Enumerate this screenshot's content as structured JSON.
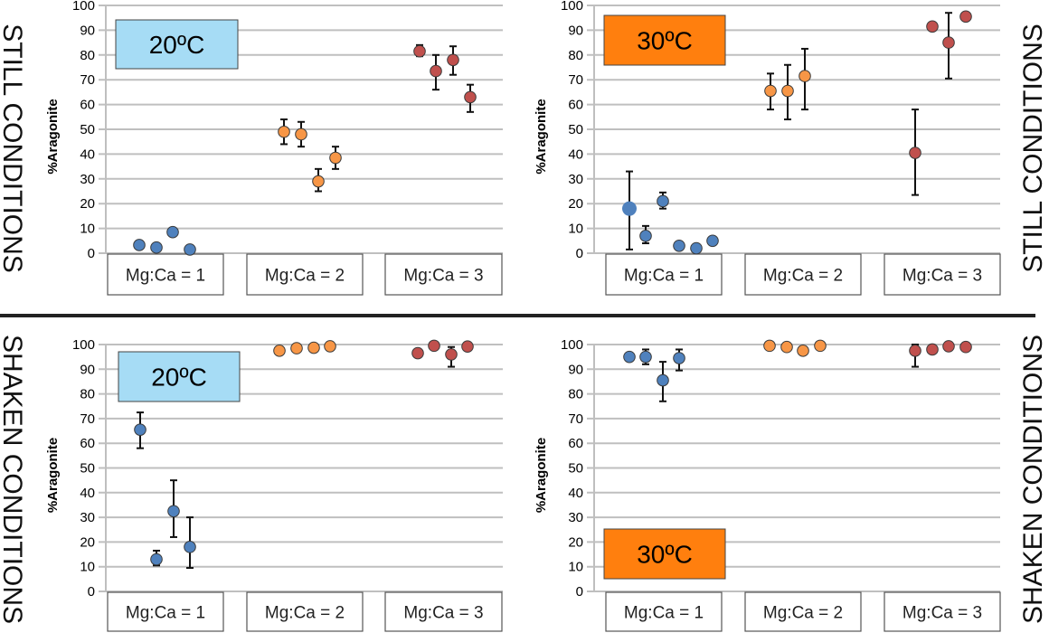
{
  "row_labels": {
    "still": "STILL CONDITIONS",
    "shaken": "SHAKEN CONDITIONS"
  },
  "colors": {
    "mg1": "#4F81BD",
    "mg2": "#F79646",
    "mg3": "#C0504D",
    "temp20": "#A6DCF5",
    "temp30": "#FF7F0E",
    "grid": "#BFBFBF"
  },
  "chart_data": [
    {
      "type": "scatter",
      "panel": "still-20C",
      "title": "20ºC",
      "condition": "STILL CONDITIONS",
      "ylabel": "%Aragonite",
      "ylim": [
        0,
        100
      ],
      "yticks": [
        0,
        10,
        20,
        30,
        40,
        50,
        60,
        70,
        80,
        90,
        100
      ],
      "grid": true,
      "categories": [
        "Mg:Ca = 1",
        "Mg:Ca = 2",
        "Mg:Ca = 3"
      ],
      "series": [
        {
          "name": "Mg:Ca = 1",
          "color_key": "mg1",
          "points": [
            {
              "y": 3.3,
              "lo": 2,
              "hi": 4.5
            },
            {
              "y": 2.3
            },
            {
              "y": 8.5,
              "lo": 7.5,
              "hi": 9.5
            },
            {
              "y": 1.5
            }
          ]
        },
        {
          "name": "Mg:Ca = 2",
          "color_key": "mg2",
          "points": [
            {
              "y": 49,
              "lo": 44,
              "hi": 54
            },
            {
              "y": 48,
              "lo": 43,
              "hi": 53
            },
            {
              "y": 29,
              "lo": 25,
              "hi": 34
            },
            {
              "y": 38.5,
              "lo": 34,
              "hi": 43
            }
          ]
        },
        {
          "name": "Mg:Ca = 3",
          "color_key": "mg3",
          "points": [
            {
              "y": 81.5,
              "lo": 79.5,
              "hi": 84
            },
            {
              "y": 73.5,
              "lo": 66,
              "hi": 80
            },
            {
              "y": 78,
              "lo": 72,
              "hi": 83.5
            },
            {
              "y": 63,
              "lo": 57,
              "hi": 68
            }
          ]
        }
      ]
    },
    {
      "type": "scatter",
      "panel": "still-30C",
      "title": "30ºC",
      "condition": "STILL CONDITIONS",
      "ylabel": "%Aragonite",
      "ylim": [
        0,
        100
      ],
      "yticks": [
        0,
        10,
        20,
        30,
        40,
        50,
        60,
        70,
        80,
        90,
        100
      ],
      "grid": true,
      "categories": [
        "Mg:Ca = 1",
        "Mg:Ca = 2",
        "Mg:Ca = 3"
      ],
      "series": [
        {
          "name": "Mg:Ca = 1",
          "color_key": "mg1",
          "points": [
            {
              "y": 18,
              "lo": 1.5,
              "hi": 33,
              "large": true
            },
            {
              "y": 7,
              "lo": 4,
              "hi": 11
            },
            {
              "y": 21,
              "lo": 18,
              "hi": 24.5
            },
            {
              "y": 3
            },
            {
              "y": 2
            },
            {
              "y": 5
            }
          ]
        },
        {
          "name": "Mg:Ca = 2",
          "color_key": "mg2",
          "points": [
            {
              "y": 65.5,
              "lo": 58,
              "hi": 72.5
            },
            {
              "y": 65.5,
              "lo": 54,
              "hi": 76
            },
            {
              "y": 71.5,
              "lo": 58,
              "hi": 82.5
            }
          ]
        },
        {
          "name": "Mg:Ca = 3",
          "color_key": "mg3",
          "points": [
            {
              "y": 40.5,
              "lo": 23.5,
              "hi": 58
            },
            {
              "y": 91.5
            },
            {
              "y": 85,
              "lo": 70.5,
              "hi": 97
            },
            {
              "y": 95.5
            }
          ]
        }
      ]
    },
    {
      "type": "scatter",
      "panel": "shaken-20C",
      "title": "20ºC",
      "condition": "SHAKEN CONDITIONS",
      "ylabel": "%Aragonite",
      "ylim": [
        0,
        100
      ],
      "yticks": [
        0,
        10,
        20,
        30,
        40,
        50,
        60,
        70,
        80,
        90,
        100
      ],
      "grid": true,
      "categories": [
        "Mg:Ca = 1",
        "Mg:Ca = 2",
        "Mg:Ca = 3"
      ],
      "series": [
        {
          "name": "Mg:Ca = 1",
          "color_key": "mg1",
          "points": [
            {
              "y": 65.5,
              "lo": 58,
              "hi": 72.5
            },
            {
              "y": 13,
              "lo": 10.5,
              "hi": 16.5
            },
            {
              "y": 32.5,
              "lo": 22,
              "hi": 45
            },
            {
              "y": 18,
              "lo": 9.5,
              "hi": 30
            }
          ]
        },
        {
          "name": "Mg:Ca = 2",
          "color_key": "mg2",
          "points": [
            {
              "y": 97.5
            },
            {
              "y": 98.5
            },
            {
              "y": 98.7
            },
            {
              "y": 99.3
            }
          ]
        },
        {
          "name": "Mg:Ca = 3",
          "color_key": "mg3",
          "points": [
            {
              "y": 96.5
            },
            {
              "y": 99.5
            },
            {
              "y": 96,
              "lo": 91,
              "hi": 99
            },
            {
              "y": 99.2
            }
          ]
        }
      ]
    },
    {
      "type": "scatter",
      "panel": "shaken-30C",
      "title": "30ºC",
      "condition": "SHAKEN CONDITIONS",
      "ylabel": "%Aragonite",
      "ylim": [
        0,
        100
      ],
      "yticks": [
        0,
        10,
        20,
        30,
        40,
        50,
        60,
        70,
        80,
        90,
        100
      ],
      "grid": true,
      "categories": [
        "Mg:Ca = 1",
        "Mg:Ca = 2",
        "Mg:Ca = 3"
      ],
      "series": [
        {
          "name": "Mg:Ca = 1",
          "color_key": "mg1",
          "points": [
            {
              "y": 95
            },
            {
              "y": 95,
              "lo": 92,
              "hi": 98
            },
            {
              "y": 85.5,
              "lo": 77,
              "hi": 93
            },
            {
              "y": 94.5,
              "lo": 89.5,
              "hi": 98
            }
          ]
        },
        {
          "name": "Mg:Ca = 2",
          "color_key": "mg2",
          "points": [
            {
              "y": 99.5
            },
            {
              "y": 99
            },
            {
              "y": 97.5
            },
            {
              "y": 99.5
            }
          ]
        },
        {
          "name": "Mg:Ca = 3",
          "color_key": "mg3",
          "points": [
            {
              "y": 97.5,
              "lo": 91,
              "hi": 100
            },
            {
              "y": 98
            },
            {
              "y": 99.3
            },
            {
              "y": 99
            }
          ]
        }
      ]
    }
  ]
}
